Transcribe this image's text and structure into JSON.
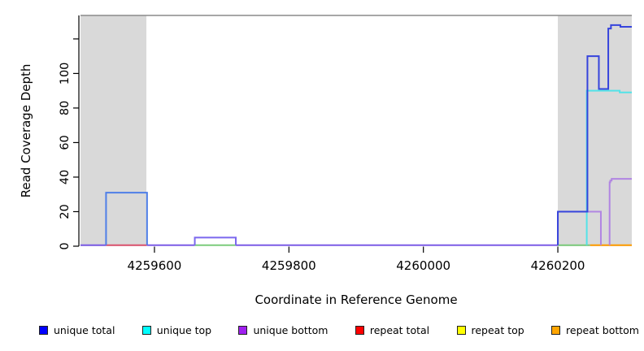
{
  "chart_data": {
    "type": "line",
    "subtype": "step-coverage-plot",
    "title": "",
    "xlabel": "Coordinate in Reference Genome",
    "ylabel": "Read Coverage Depth",
    "xlim": [
      4259490,
      4260310
    ],
    "ylim": [
      0,
      133.6
    ],
    "grid": "off",
    "legend_position": "bottom",
    "x_ticks": [
      {
        "value": 4259600,
        "label": "4259600"
      },
      {
        "value": 4259800,
        "label": "4259800"
      },
      {
        "value": 4260000,
        "label": "4260000"
      },
      {
        "value": 4260200,
        "label": "4260200"
      }
    ],
    "y_ticks": [
      {
        "value": 0,
        "label": "0"
      },
      {
        "value": 20,
        "label": "20"
      },
      {
        "value": 40,
        "label": "40"
      },
      {
        "value": 60,
        "label": "60"
      },
      {
        "value": 80,
        "label": "80"
      },
      {
        "value": 100,
        "label": "100"
      },
      {
        "value": 120,
        "label": ""
      }
    ],
    "shaded_regions": [
      {
        "name": "left-gray-region",
        "from": 4259490,
        "to": 4259588,
        "color": "#D9D9D9"
      },
      {
        "name": "right-gray-region",
        "from": 4260200,
        "to": 4260310,
        "color": "#D9D9D9"
      }
    ],
    "top_border_color": "#8A8A8A",
    "axis_color": "#000000",
    "baseline_segments": [
      {
        "name": "unique-bottom-baseline-left",
        "color": "#7B5CE6",
        "from": 4259490,
        "to": 4259528,
        "value": 0
      },
      {
        "name": "repeat-total-under-left-box",
        "color": "#DD5470",
        "from": 4259528,
        "to": 4259589,
        "value": 0
      },
      {
        "name": "unique-bottom-baseline-mid1",
        "color": "#7B5CE6",
        "from": 4259589,
        "to": 4259660,
        "value": 0
      },
      {
        "name": "top-strand-under-small-box",
        "color": "#7CCB7C",
        "from": 4259660,
        "to": 4259721,
        "value": 0
      },
      {
        "name": "unique-bottom-baseline-mid2",
        "color": "#7B5CE6",
        "from": 4259721,
        "to": 4260200,
        "value": 0
      },
      {
        "name": "top-strand-baseline-right",
        "color": "#7CCB7C",
        "from": 4260200,
        "to": 4260248,
        "value": 0
      },
      {
        "name": "repeat-bottom-baseline-right",
        "color": "#FF9C00",
        "from": 4260248,
        "to": 4260310,
        "value": 0
      }
    ],
    "paths": [
      {
        "series": "unique bottom",
        "name": "unique-bottom-right-step-20",
        "color": "#B185E2",
        "points": [
          [
            4260200,
            0
          ],
          [
            4260200,
            20
          ],
          [
            4260264,
            20
          ],
          [
            4260264,
            0
          ]
        ]
      },
      {
        "series": "unique bottom",
        "name": "unique-bottom-right-step-39",
        "color": "#B185E2",
        "points": [
          [
            4260277,
            0
          ],
          [
            4260277,
            37
          ],
          [
            4260278,
            37
          ],
          [
            4260278,
            38
          ],
          [
            4260280,
            38
          ],
          [
            4260280,
            39
          ],
          [
            4260310,
            39
          ]
        ]
      },
      {
        "series": "unique top",
        "name": "unique-top-right-step-90",
        "color": "#53E3E8",
        "points": [
          [
            4260243,
            0
          ],
          [
            4260243,
            90
          ],
          [
            4260292,
            90
          ],
          [
            4260292,
            89
          ],
          [
            4260310,
            89
          ]
        ]
      },
      {
        "series": "unique total",
        "name": "unique-total-left-box-31",
        "color": "#4F7FE8",
        "points": [
          [
            4259528,
            0
          ],
          [
            4259528,
            31
          ],
          [
            4259589,
            31
          ],
          [
            4259589,
            0
          ]
        ]
      },
      {
        "series": "unique total + unique bottom",
        "name": "small-box-5",
        "color": "#7B68EE",
        "points": [
          [
            4259660,
            0
          ],
          [
            4259660,
            5
          ],
          [
            4259721,
            5
          ],
          [
            4259721,
            0
          ]
        ]
      },
      {
        "series": "unique total",
        "name": "unique-total-right-profile",
        "color": "#3644DC",
        "points": [
          [
            4260200,
            0
          ],
          [
            4260200,
            20
          ],
          [
            4260244,
            20
          ],
          [
            4260244,
            110
          ],
          [
            4260261,
            110
          ],
          [
            4260261,
            91
          ],
          [
            4260275,
            91
          ],
          [
            4260275,
            126
          ],
          [
            4260279,
            126
          ],
          [
            4260279,
            128
          ],
          [
            4260293,
            128
          ],
          [
            4260293,
            127
          ],
          [
            4260310,
            127
          ]
        ]
      }
    ],
    "legend": [
      {
        "label": "unique total",
        "color": "#0000FF"
      },
      {
        "label": "unique top",
        "color": "#00FFFF"
      },
      {
        "label": "unique bottom",
        "color": "#A020F0"
      },
      {
        "label": "repeat total",
        "color": "#FF0000"
      },
      {
        "label": "repeat top",
        "color": "#FFFF00"
      },
      {
        "label": "repeat bottom",
        "color": "#FFA500"
      }
    ]
  }
}
